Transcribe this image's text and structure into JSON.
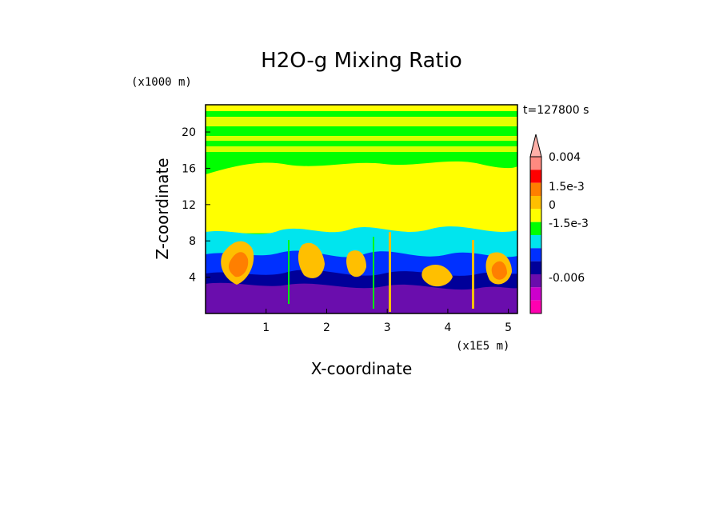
{
  "chart_data": {
    "type": "heatmap",
    "title": "H2O-g Mixing Ratio",
    "xlabel": "X-coordinate",
    "ylabel": "Z-coordinate",
    "x_unit": "(x1E5 m)",
    "y_unit": "(x1000 m)",
    "time_label": "t=127800 s",
    "xlim": [
      0,
      5.15
    ],
    "ylim": [
      0,
      23
    ],
    "x_ticks": [
      "1",
      "2",
      "3",
      "4",
      "5"
    ],
    "y_ticks": [
      "4",
      "8",
      "12",
      "16",
      "20"
    ],
    "colorbar": {
      "levels": [
        "0.004",
        "1.5e-3",
        "0",
        "-1.5e-3",
        "-0.006"
      ],
      "colors": [
        "#ff8a80",
        "#ff0000",
        "#ff7f00",
        "#ffbf00",
        "#ffff00",
        "#00ff00",
        "#00e5ee",
        "#0030ff",
        "#000099",
        "#6a0dad",
        "#cc00cc",
        "#ff00b0"
      ]
    },
    "colors": {
      "purple": "#6a0dad",
      "magenta": "#ff00b0",
      "navy": "#000099",
      "blue": "#0030ff",
      "cyan": "#00e5ee",
      "green": "#00ff00",
      "yellow": "#ffff00",
      "gold": "#ffbf00",
      "orange": "#ff7f00",
      "red": "#ff0000"
    }
  }
}
